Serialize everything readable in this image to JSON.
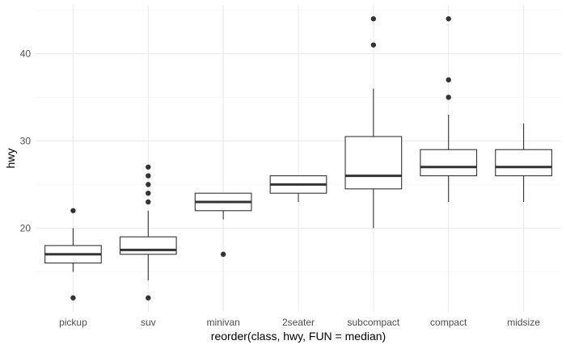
{
  "chart_data": {
    "type": "boxplot",
    "title": "",
    "xlabel": "reorder(class, hwy, FUN = median)",
    "ylabel": "hwy",
    "ylim": [
      10.4,
      45.6
    ],
    "y_major_ticks": [
      20,
      30,
      40
    ],
    "y_minor_ticks": [
      15,
      25,
      35,
      45
    ],
    "grid": true,
    "categories": [
      "pickup",
      "suv",
      "minivan",
      "2seater",
      "subcompact",
      "compact",
      "midsize"
    ],
    "boxes": [
      {
        "category": "pickup",
        "lower_whisker": 15,
        "q1": 16,
        "median": 17,
        "q3": 18,
        "upper_whisker": 20,
        "outliers": [
          12,
          22
        ]
      },
      {
        "category": "suv",
        "lower_whisker": 14,
        "q1": 17,
        "median": 17.5,
        "q3": 19,
        "upper_whisker": 22,
        "outliers": [
          12,
          23,
          24,
          25,
          26,
          27
        ]
      },
      {
        "category": "minivan",
        "lower_whisker": 21,
        "q1": 22,
        "median": 23,
        "q3": 24,
        "upper_whisker": 24,
        "outliers": [
          17
        ]
      },
      {
        "category": "2seater",
        "lower_whisker": 23,
        "q1": 24,
        "median": 25,
        "q3": 26,
        "upper_whisker": 26,
        "outliers": []
      },
      {
        "category": "subcompact",
        "lower_whisker": 20,
        "q1": 24.5,
        "median": 26,
        "q3": 30.5,
        "upper_whisker": 36,
        "outliers": [
          41,
          44
        ]
      },
      {
        "category": "compact",
        "lower_whisker": 23,
        "q1": 26,
        "median": 27,
        "q3": 29,
        "upper_whisker": 33,
        "outliers": [
          35,
          37,
          44
        ]
      },
      {
        "category": "midsize",
        "lower_whisker": 23,
        "q1": 26,
        "median": 27,
        "q3": 29,
        "upper_whisker": 32,
        "outliers": []
      }
    ]
  }
}
